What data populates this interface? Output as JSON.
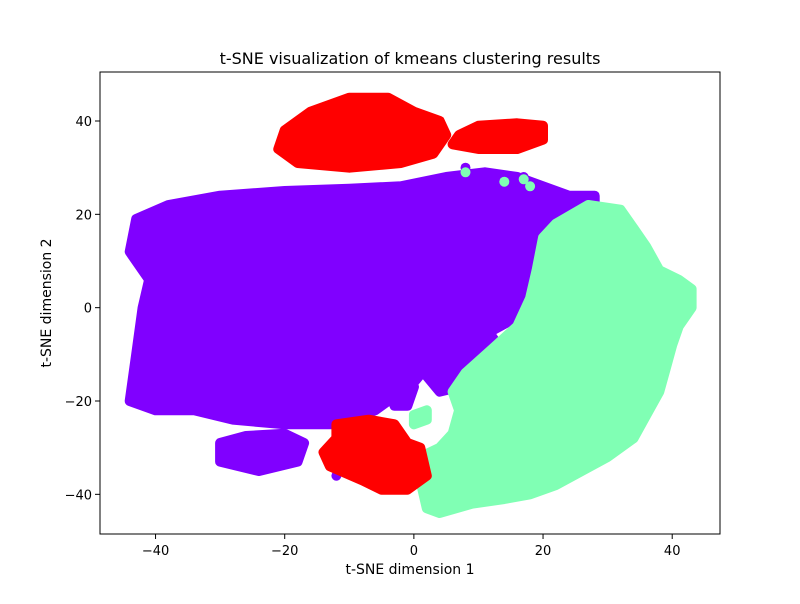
{
  "chart_data": {
    "type": "scatter",
    "title": "t-SNE visualization of kmeans clustering results",
    "xlabel": "t-SNE dimension 1",
    "ylabel": "t-SNE dimension 2",
    "xlim": [
      -48.6,
      47.4
    ],
    "ylim": [
      -48.5,
      50.5
    ],
    "xticks": [
      -40,
      -20,
      0,
      20,
      40
    ],
    "yticks": [
      -40,
      -20,
      0,
      20,
      40
    ],
    "xtick_labels": [
      "−40",
      "−20",
      "0",
      "20",
      "40"
    ],
    "ytick_labels": [
      "−40",
      "−20",
      "0",
      "20",
      "40"
    ],
    "grid": false,
    "legend": "none",
    "series": [
      {
        "color": "#8000ff",
        "regions": [
          {
            "outline": [
              [
                -43,
                19
              ],
              [
                -38,
                22
              ],
              [
                -30,
                24
              ],
              [
                -20,
                25
              ],
              [
                -10,
                25.5
              ],
              [
                -2,
                26
              ],
              [
                5,
                28
              ],
              [
                11,
                29
              ],
              [
                16,
                28
              ],
              [
                20,
                26
              ],
              [
                24,
                24
              ],
              [
                28,
                24
              ],
              [
                28,
                20
              ],
              [
                22,
                16
              ],
              [
                20,
                10
              ],
              [
                20,
                3
              ],
              [
                16,
                -2
              ],
              [
                12,
                -5
              ],
              [
                6,
                -8
              ],
              [
                3,
                -11
              ],
              [
                0,
                -16
              ],
              [
                -3,
                -19
              ],
              [
                -6,
                -22
              ],
              [
                -12,
                -25
              ],
              [
                -20,
                -25
              ],
              [
                -28,
                -24
              ],
              [
                -34,
                -22
              ],
              [
                -40,
                -22
              ],
              [
                -44,
                -20
              ],
              [
                -43,
                -10
              ],
              [
                -42,
                0
              ],
              [
                -41,
                6
              ],
              [
                -44,
                12
              ]
            ]
          },
          {
            "outline": [
              [
                -30,
                -29
              ],
              [
                -26,
                -27.5
              ],
              [
                -20,
                -27
              ],
              [
                -17,
                -29
              ],
              [
                -18,
                -33
              ],
              [
                -24,
                -35
              ],
              [
                -30,
                -33
              ]
            ]
          },
          {
            "outline": [
              [
                4,
                -8
              ],
              [
                12,
                -6
              ],
              [
                15,
                -12
              ],
              [
                10,
                -16
              ],
              [
                4,
                -18
              ],
              [
                1,
                -13
              ]
            ]
          },
          {
            "outline": [
              [
                -4,
                -17
              ],
              [
                -2,
                -15
              ],
              [
                0,
                -17
              ],
              [
                -1,
                -21
              ],
              [
                -3,
                -21
              ]
            ]
          }
        ],
        "points": [
          [
            -12,
            -36
          ],
          [
            -2,
            -35
          ],
          [
            -1,
            -33.5
          ],
          [
            1,
            -35
          ],
          [
            3,
            -37
          ],
          [
            -4,
            -30
          ],
          [
            8,
            30
          ],
          [
            17,
            28
          ],
          [
            3,
            25
          ],
          [
            -5,
            20
          ],
          [
            27,
            23
          ]
        ]
      },
      {
        "color": "#80ffb4",
        "regions": [
          {
            "outline": [
              [
                20,
                15
              ],
              [
                22,
                18
              ],
              [
                27,
                22
              ],
              [
                32,
                21
              ],
              [
                34,
                17
              ],
              [
                36,
                13
              ],
              [
                38,
                8
              ],
              [
                41,
                6
              ],
              [
                43,
                4
              ],
              [
                43,
                0
              ],
              [
                41,
                -4
              ],
              [
                40,
                -8
              ],
              [
                39,
                -13
              ],
              [
                38,
                -18
              ],
              [
                36,
                -23
              ],
              [
                34,
                -28
              ],
              [
                30,
                -32
              ],
              [
                26,
                -35
              ],
              [
                22,
                -38
              ],
              [
                18,
                -40
              ],
              [
                14,
                -41
              ],
              [
                9,
                -42
              ],
              [
                4,
                -44
              ],
              [
                2,
                -43
              ],
              [
                1,
                -37
              ],
              [
                1,
                -32
              ],
              [
                4,
                -30
              ],
              [
                6,
                -27
              ],
              [
                7,
                -22
              ],
              [
                6,
                -18
              ],
              [
                8,
                -14
              ],
              [
                12,
                -9
              ],
              [
                16,
                -4
              ],
              [
                18,
                2
              ],
              [
                19,
                8
              ]
            ]
          },
          {
            "outline": [
              [
                0,
                -23
              ],
              [
                2,
                -22
              ],
              [
                2,
                -24
              ],
              [
                0,
                -25
              ]
            ]
          }
        ],
        "points": [
          [
            8,
            29
          ],
          [
            14,
            27
          ],
          [
            17,
            27.5
          ],
          [
            18,
            26
          ],
          [
            1,
            -23
          ],
          [
            0,
            -33
          ]
        ]
      },
      {
        "color": "#ff0000",
        "regions": [
          {
            "outline": [
              [
                -20,
                38
              ],
              [
                -16,
                42
              ],
              [
                -10,
                45
              ],
              [
                -4,
                45
              ],
              [
                0,
                42
              ],
              [
                4,
                40
              ],
              [
                5,
                37
              ],
              [
                3,
                33
              ],
              [
                -2,
                31
              ],
              [
                -10,
                30
              ],
              [
                -18,
                31
              ],
              [
                -21,
                34
              ]
            ]
          },
          {
            "outline": [
              [
                7,
                37
              ],
              [
                10,
                39
              ],
              [
                16,
                39.5
              ],
              [
                20,
                39
              ],
              [
                20,
                36
              ],
              [
                16,
                34
              ],
              [
                10,
                34
              ],
              [
                6,
                35
              ]
            ]
          },
          {
            "outline": [
              [
                -12,
                -25
              ],
              [
                -7,
                -24
              ],
              [
                -3,
                -25
              ],
              [
                -1,
                -29
              ],
              [
                1,
                -30
              ],
              [
                2,
                -36
              ],
              [
                -1,
                -39
              ],
              [
                -5,
                -39
              ],
              [
                -8,
                -37
              ],
              [
                -13,
                -34
              ],
              [
                -14,
                -31
              ],
              [
                -12,
                -28
              ]
            ]
          }
        ],
        "points": []
      }
    ]
  }
}
